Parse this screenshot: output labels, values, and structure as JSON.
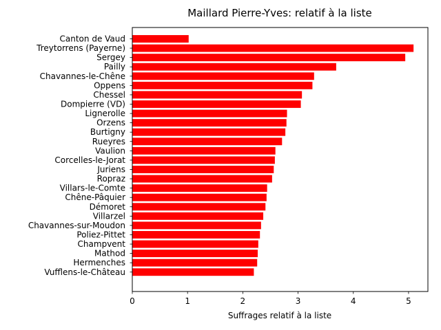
{
  "chart_data": {
    "type": "bar",
    "orientation": "horizontal",
    "title": "Maillard Pierre-Yves: relatif à la liste",
    "xlabel": "Suffrages relatif à la liste",
    "ylabel": "",
    "xlim": [
      0,
      5.35
    ],
    "xticks": [
      0,
      1,
      2,
      3,
      4,
      5
    ],
    "grid": false,
    "bar_color": "#ff0000",
    "categories": [
      "Canton de Vaud",
      "Treytorrens (Payerne)",
      "Sergey",
      "Pailly",
      "Chavannes-le-Chêne",
      "Oppens",
      "Chessel",
      "Dompierre (VD)",
      "Lignerolle",
      "Orzens",
      "Burtigny",
      "Rueyres",
      "Vaulion",
      "Corcelles-le-Jorat",
      "Juriens",
      "Ropraz",
      "Villars-le-Comte",
      "Chêne-Pâquier",
      "Démoret",
      "Villarzel",
      "Chavannes-sur-Moudon",
      "Poliez-Pittet",
      "Champvent",
      "Mathod",
      "Hermenches",
      "Vufflens-le-Château"
    ],
    "values": [
      1.02,
      5.09,
      4.94,
      3.69,
      3.29,
      3.26,
      3.07,
      3.05,
      2.8,
      2.79,
      2.77,
      2.71,
      2.59,
      2.58,
      2.56,
      2.53,
      2.44,
      2.43,
      2.41,
      2.37,
      2.33,
      2.31,
      2.28,
      2.27,
      2.26,
      2.2
    ]
  }
}
